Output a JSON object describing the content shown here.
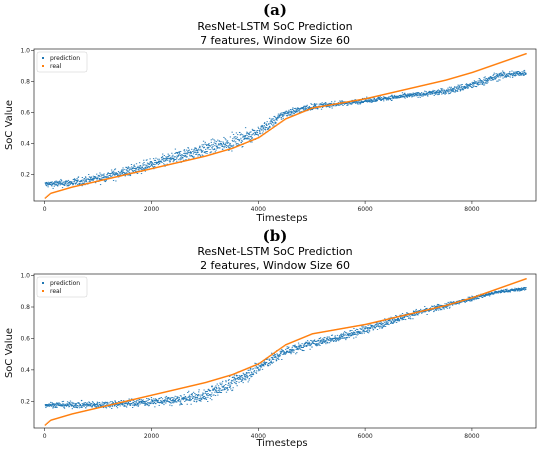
{
  "panels": [
    {
      "label": "(a)",
      "title_line1": "ResNet-LSTM SoC Prediction",
      "title_line2": "7 features, Window Size 60",
      "xlabel": "Timesteps",
      "ylabel": "SoC Value"
    },
    {
      "label": "(b)",
      "title_line1": "ResNet-LSTM SoC Prediction",
      "title_line2": "2 features, Window Size 60",
      "xlabel": "Timesteps",
      "ylabel": "SoC Value"
    }
  ],
  "colors": {
    "prediction": "#1f77b4",
    "real": "#ff7f0e"
  },
  "chart_data": [
    {
      "type": "scatter",
      "title": "ResNet-LSTM SoC Prediction",
      "subtitle": "7 features, Window Size 60",
      "xlabel": "Timesteps",
      "ylabel": "SoC Value",
      "xlim": [
        -200,
        9200
      ],
      "ylim": [
        0.03,
        1.01
      ],
      "xticks": [
        0,
        2000,
        4000,
        6000,
        8000
      ],
      "yticks": [
        0.2,
        0.4,
        0.6,
        0.8,
        1.0
      ],
      "ytick_labels": [
        "0.2",
        "0.4",
        "0.6",
        "0.8",
        "1.0"
      ],
      "legend": {
        "position": "top-left",
        "entries": [
          "prediction",
          "real"
        ]
      },
      "grid": false,
      "series": [
        {
          "name": "prediction",
          "x": [
            0,
            500,
            1000,
            1500,
            2000,
            2500,
            3000,
            3500,
            4000,
            4500,
            5000,
            5500,
            6000,
            6500,
            7000,
            7500,
            8000,
            8500,
            9000
          ],
          "values": [
            0.14,
            0.15,
            0.18,
            0.22,
            0.27,
            0.32,
            0.37,
            0.41,
            0.48,
            0.6,
            0.64,
            0.66,
            0.68,
            0.7,
            0.72,
            0.74,
            0.78,
            0.84,
            0.86
          ],
          "spread": [
            0.04,
            0.05,
            0.06,
            0.07,
            0.07,
            0.08,
            0.09,
            0.09,
            0.08,
            0.05,
            0.04,
            0.03,
            0.03,
            0.03,
            0.03,
            0.04,
            0.05,
            0.05,
            0.04
          ]
        },
        {
          "name": "real",
          "x": [
            0,
            100,
            300,
            500,
            1000,
            1500,
            2000,
            2500,
            3000,
            3500,
            4000,
            4500,
            5000,
            5500,
            6000,
            6500,
            7000,
            7500,
            8000,
            8500,
            9000
          ],
          "values": [
            0.05,
            0.08,
            0.1,
            0.12,
            0.16,
            0.2,
            0.24,
            0.28,
            0.32,
            0.37,
            0.44,
            0.56,
            0.63,
            0.66,
            0.69,
            0.73,
            0.77,
            0.81,
            0.86,
            0.92,
            0.98
          ]
        }
      ]
    },
    {
      "type": "scatter",
      "title": "ResNet-LSTM SoC Prediction",
      "subtitle": "2 features, Window Size 60",
      "xlabel": "Timesteps",
      "ylabel": "SoC Value",
      "xlim": [
        -200,
        9200
      ],
      "ylim": [
        0.03,
        1.01
      ],
      "xticks": [
        0,
        2000,
        4000,
        6000,
        8000
      ],
      "yticks": [
        0.2,
        0.4,
        0.6,
        0.8,
        1.0
      ],
      "ytick_labels": [
        "0.2",
        "0.4",
        "0.6",
        "0.8",
        "1.0"
      ],
      "legend": {
        "position": "top-left",
        "entries": [
          "prediction",
          "real"
        ]
      },
      "grid": false,
      "series": [
        {
          "name": "prediction",
          "x": [
            0,
            500,
            1000,
            1500,
            2000,
            2500,
            3000,
            3500,
            4000,
            4500,
            5000,
            5500,
            6000,
            6500,
            7000,
            7500,
            8000,
            8500,
            9000
          ],
          "values": [
            0.18,
            0.18,
            0.18,
            0.19,
            0.2,
            0.21,
            0.24,
            0.32,
            0.42,
            0.52,
            0.57,
            0.61,
            0.66,
            0.72,
            0.77,
            0.81,
            0.86,
            0.9,
            0.92
          ],
          "spread": [
            0.03,
            0.04,
            0.04,
            0.05,
            0.05,
            0.06,
            0.08,
            0.09,
            0.08,
            0.06,
            0.05,
            0.05,
            0.05,
            0.05,
            0.04,
            0.04,
            0.03,
            0.02,
            0.02
          ]
        },
        {
          "name": "real",
          "x": [
            0,
            100,
            300,
            500,
            1000,
            1500,
            2000,
            2500,
            3000,
            3500,
            4000,
            4500,
            5000,
            5500,
            6000,
            6500,
            7000,
            7500,
            8000,
            8500,
            9000
          ],
          "values": [
            0.05,
            0.08,
            0.1,
            0.12,
            0.16,
            0.2,
            0.24,
            0.28,
            0.32,
            0.37,
            0.44,
            0.56,
            0.63,
            0.66,
            0.69,
            0.73,
            0.77,
            0.81,
            0.86,
            0.92,
            0.98
          ]
        }
      ]
    }
  ]
}
